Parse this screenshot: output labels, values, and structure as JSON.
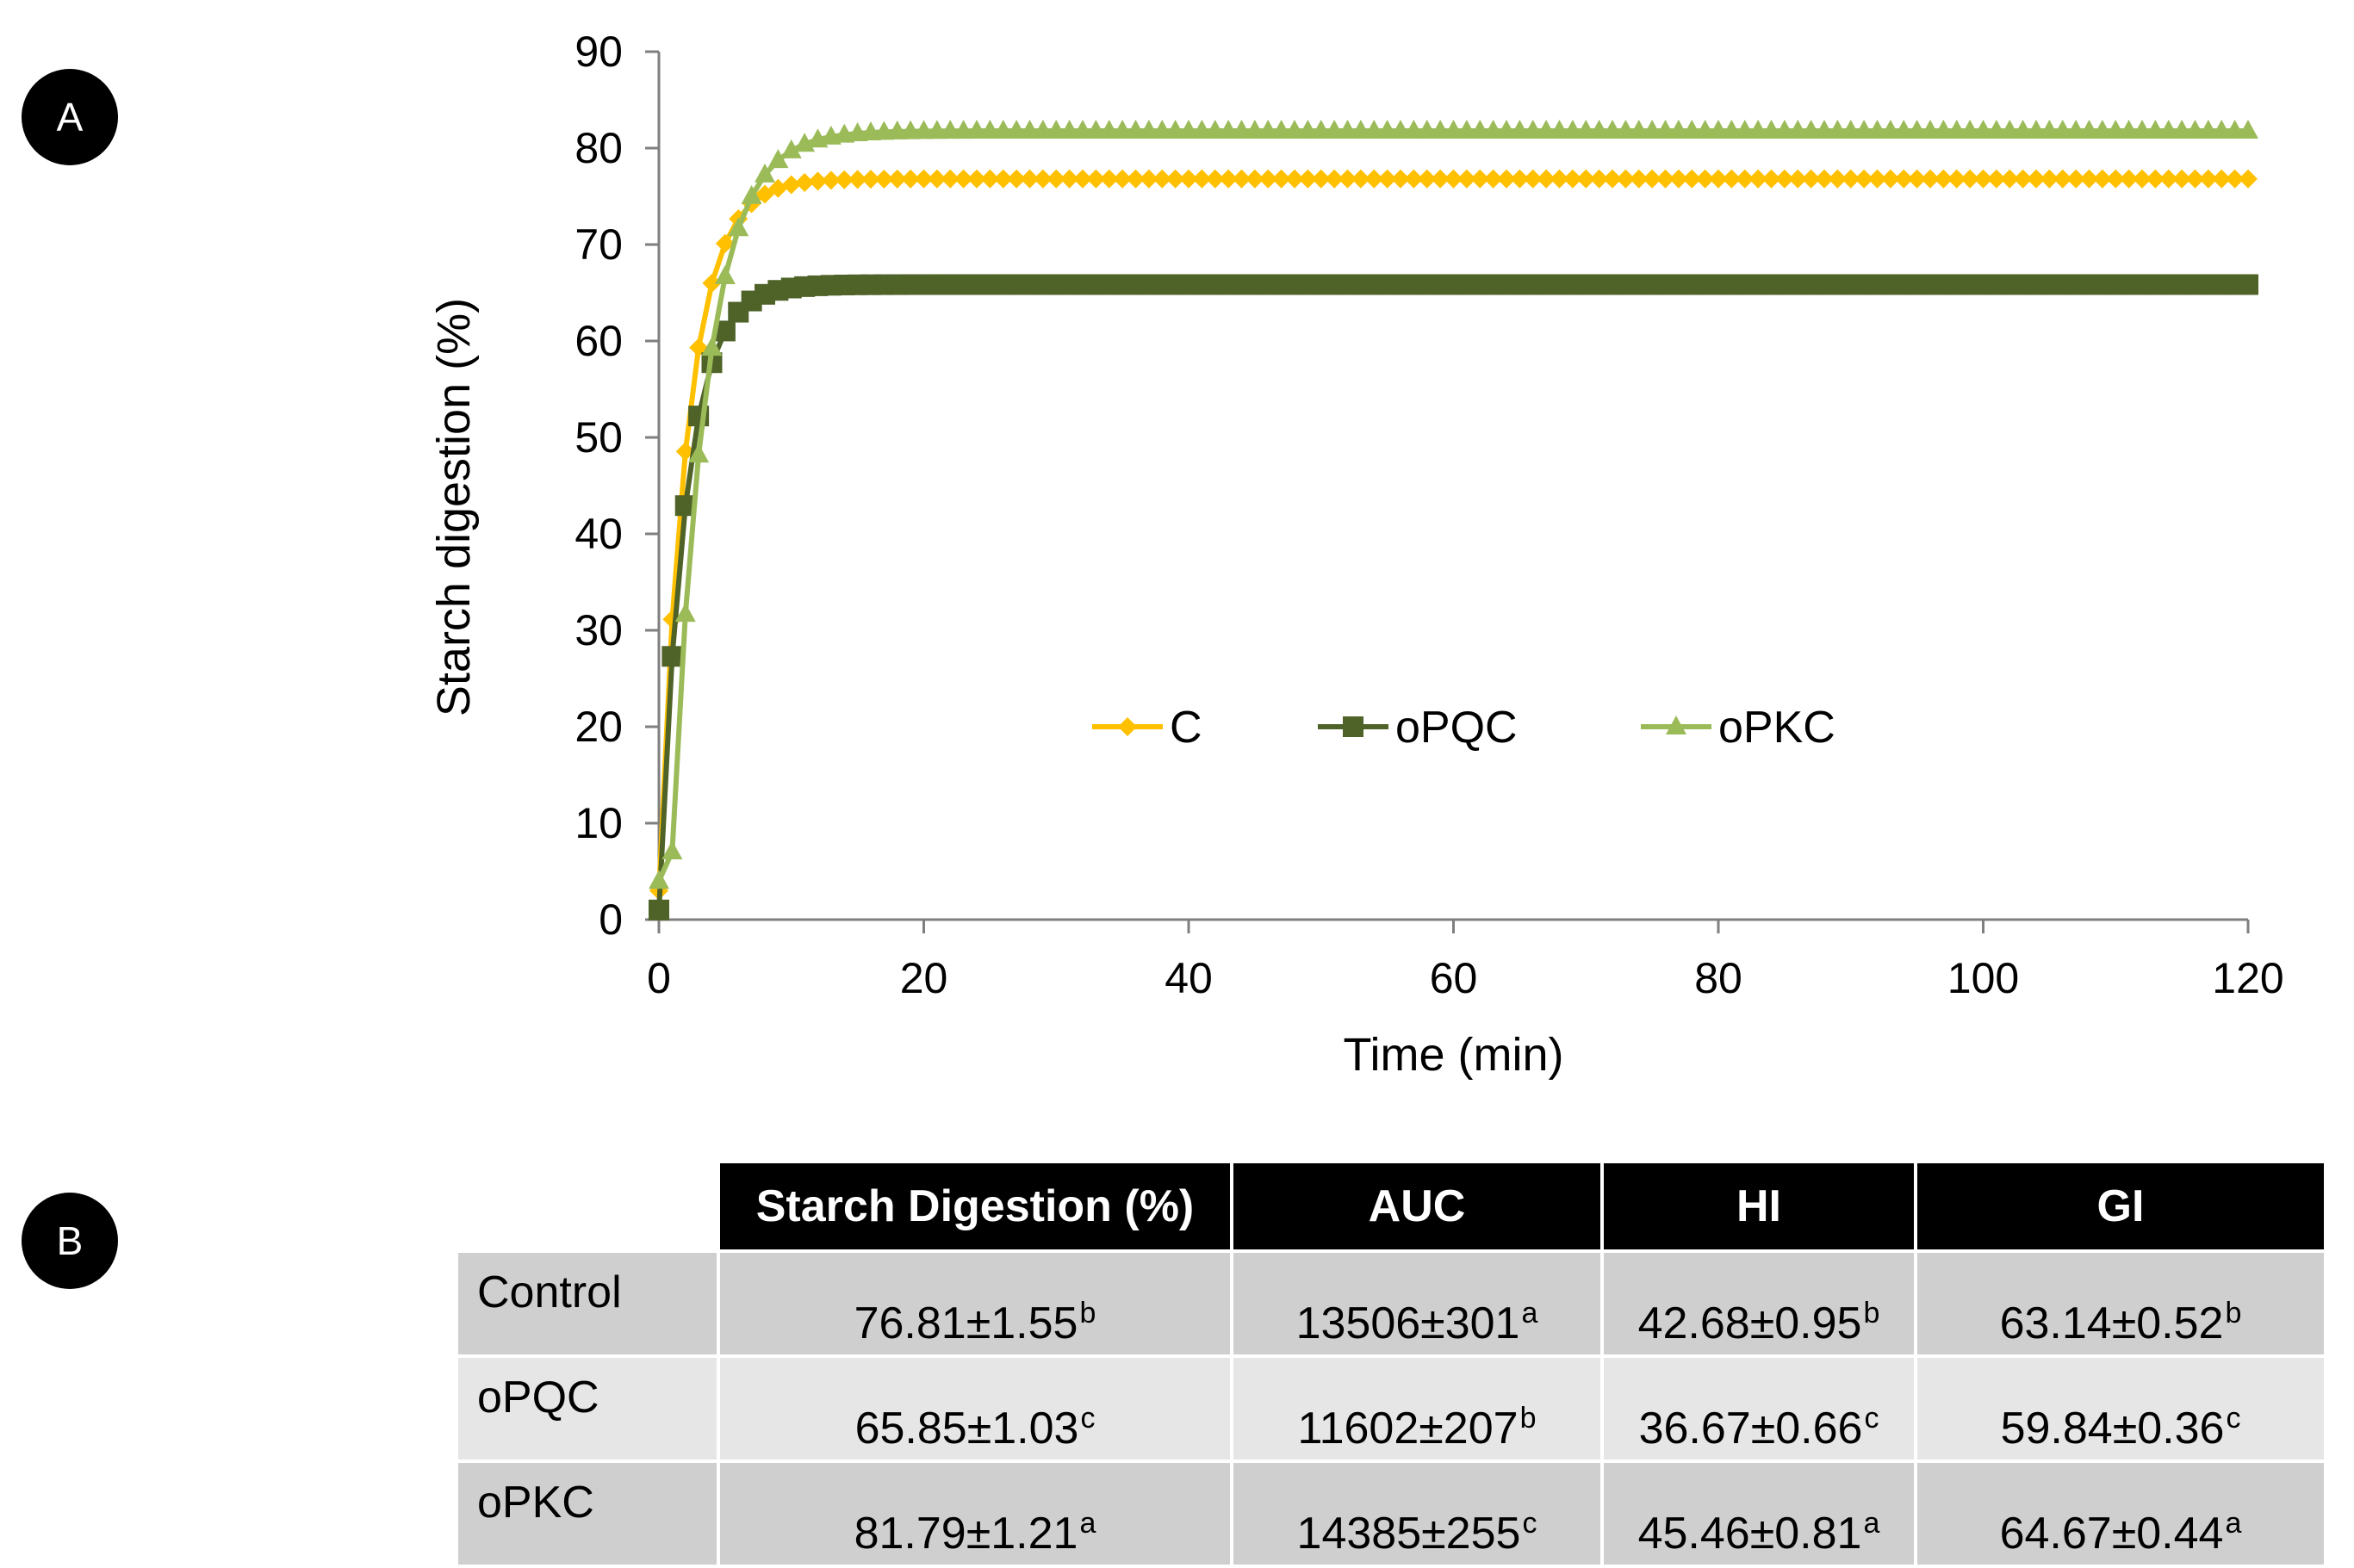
{
  "panels": {
    "a": "A",
    "b": "B"
  },
  "chart_data": {
    "type": "line",
    "title": "",
    "xlabel": "Time (min)",
    "ylabel": "Starch digestion (%)",
    "xlim": [
      0,
      120
    ],
    "ylim": [
      0,
      90
    ],
    "xticks": [
      0,
      20,
      40,
      60,
      80,
      100,
      120
    ],
    "yticks": [
      0,
      10,
      20,
      30,
      40,
      50,
      60,
      70,
      80,
      90
    ],
    "grid": false,
    "legend_position": "center-right, inside plot",
    "x_step": 1,
    "series": [
      {
        "name": "C",
        "color": "#FFC000",
        "marker": "diamond",
        "start": 3,
        "plateau": 76.81,
        "k": 0.48
      },
      {
        "name": "oPQC",
        "color": "#4F6228",
        "marker": "square",
        "start": 1,
        "plateau": 65.85,
        "k": 0.52
      },
      {
        "name": "oPKC",
        "color": "#9BBB59",
        "marker": "triangle",
        "start": 4,
        "plateau": 81.79,
        "k": 0.4,
        "shift": 0.9
      }
    ]
  },
  "table": {
    "headers": [
      "Starch Digestion (%)",
      "AUC",
      "HI",
      "GI"
    ],
    "rows": [
      {
        "label": "Control",
        "cells": [
          {
            "v": "76.81±1.55",
            "s": "b"
          },
          {
            "v": "13506±301",
            "s": "a"
          },
          {
            "v": "42.68±0.95",
            "s": "b"
          },
          {
            "v": "63.14±0.52",
            "s": "b"
          }
        ]
      },
      {
        "label": "oPQC",
        "cells": [
          {
            "v": "65.85±1.03",
            "s": "c"
          },
          {
            "v": "11602±207",
            "s": "b"
          },
          {
            "v": "36.67±0.66",
            "s": "c"
          },
          {
            "v": "59.84±0.36",
            "s": "c"
          }
        ]
      },
      {
        "label": "oPKC",
        "cells": [
          {
            "v": "81.79±1.21",
            "s": "a"
          },
          {
            "v": "14385±255",
            "s": "c"
          },
          {
            "v": "45.46±0.81",
            "s": "a"
          },
          {
            "v": "64.67±0.44",
            "s": "a"
          }
        ]
      }
    ]
  }
}
